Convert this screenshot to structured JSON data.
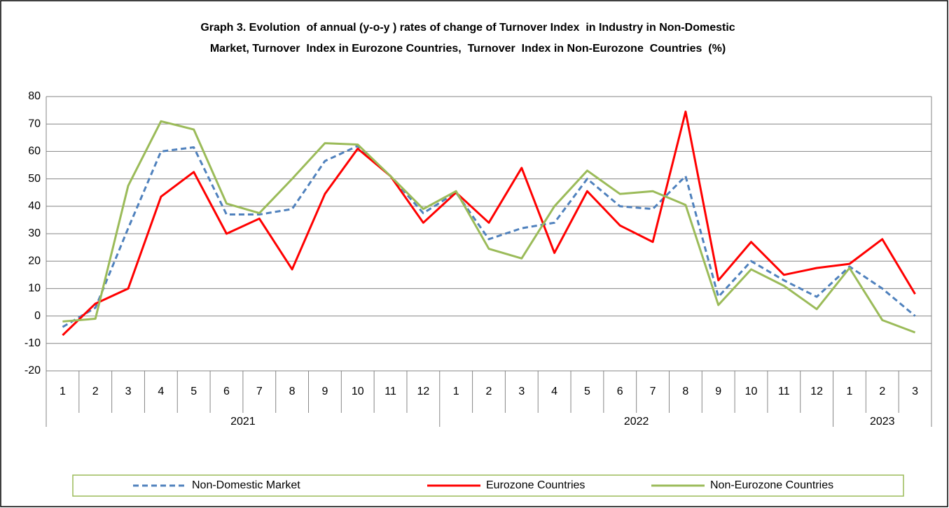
{
  "chart_data": {
    "type": "line",
    "title": [
      "Graph 3. Evolution  of annual (y-o-y ) rates of change of Turnover Index  in Industry in Non-Domestic",
      "Market, Turnover  Index in Eurozone Countries,  Turnover  Index in Non-Eurozone  Countries  (%)"
    ],
    "groups": [
      {
        "label": "2021",
        "categories": [
          "1",
          "2",
          "3",
          "4",
          "5",
          "6",
          "7",
          "8",
          "9",
          "10",
          "11",
          "12"
        ]
      },
      {
        "label": "2022",
        "categories": [
          "1",
          "2",
          "3",
          "4",
          "5",
          "6",
          "7",
          "8",
          "9",
          "10",
          "11",
          "12"
        ]
      },
      {
        "label": "2023",
        "categories": [
          "1",
          "2",
          "3"
        ]
      }
    ],
    "series": [
      {
        "name": "Non-Domestic Market",
        "color": "#4f81bd",
        "dashed": true,
        "values": [
          -4,
          3,
          32,
          60,
          61.5,
          37,
          37,
          39,
          56.5,
          62,
          51,
          37.5,
          45,
          28,
          32,
          34,
          50,
          40,
          39,
          51,
          7,
          20,
          13,
          7,
          18,
          10,
          0
        ]
      },
      {
        "name": "Eurozone Countries",
        "color": "#ff0000",
        "dashed": false,
        "values": [
          -7,
          4.5,
          10,
          43.5,
          52.5,
          30,
          35.5,
          17,
          44.5,
          61,
          51,
          34,
          45,
          34,
          54,
          23,
          45.5,
          33,
          27,
          74.5,
          13,
          27,
          15,
          17.5,
          19,
          28,
          8
        ]
      },
      {
        "name": "Non-Eurozone Countries",
        "color": "#9bbb59",
        "dashed": false,
        "values": [
          -2,
          -1,
          47.5,
          71,
          68,
          41,
          37.5,
          50,
          63,
          62.5,
          51,
          39,
          45.5,
          24.5,
          21,
          40,
          53,
          44.5,
          45.5,
          40.5,
          4,
          17,
          11,
          2.5,
          17.5,
          -1.5,
          -6
        ]
      }
    ],
    "ylim": [
      -20,
      80
    ],
    "yticks": [
      -20,
      -10,
      0,
      10,
      20,
      30,
      40,
      50,
      60,
      70,
      80
    ],
    "grid": true,
    "legend": "bottom"
  }
}
